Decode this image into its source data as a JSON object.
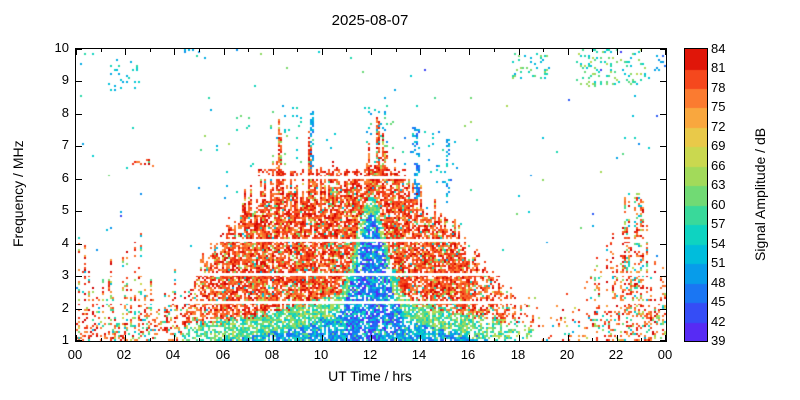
{
  "chart_data": {
    "type": "heatmap",
    "title": "2025-08-07",
    "xlabel": "UT Time / hrs",
    "ylabel": "Frequency / MHz",
    "xlim": [
      0,
      24
    ],
    "ylim": [
      1,
      10
    ],
    "grid": false,
    "x_ticks": [
      {
        "value": 0,
        "label": "00"
      },
      {
        "value": 2,
        "label": "02"
      },
      {
        "value": 4,
        "label": "04"
      },
      {
        "value": 6,
        "label": "06"
      },
      {
        "value": 8,
        "label": "08"
      },
      {
        "value": 10,
        "label": "10"
      },
      {
        "value": 12,
        "label": "12"
      },
      {
        "value": 14,
        "label": "14"
      },
      {
        "value": 16,
        "label": "16"
      },
      {
        "value": 18,
        "label": "18"
      },
      {
        "value": 20,
        "label": "20"
      },
      {
        "value": 22,
        "label": "22"
      },
      {
        "value": 24,
        "label": "00"
      }
    ],
    "y_ticks": [
      {
        "value": 1,
        "label": "1"
      },
      {
        "value": 2,
        "label": "2"
      },
      {
        "value": 3,
        "label": "3"
      },
      {
        "value": 4,
        "label": "4"
      },
      {
        "value": 5,
        "label": "5"
      },
      {
        "value": 6,
        "label": "6"
      },
      {
        "value": 7,
        "label": "7"
      },
      {
        "value": 8,
        "label": "8"
      },
      {
        "value": 9,
        "label": "9"
      },
      {
        "value": 10,
        "label": "10"
      }
    ],
    "colorbar": {
      "label": "Signal Amplitude / dB",
      "min": 39,
      "max": 84,
      "tick_values": [
        39,
        42,
        45,
        48,
        51,
        54,
        57,
        60,
        63,
        66,
        69,
        72,
        75,
        78,
        81,
        84
      ],
      "stops": [
        [
          39,
          "#6a1cf2"
        ],
        [
          42,
          "#433af5"
        ],
        [
          45,
          "#2660f6"
        ],
        [
          48,
          "#0d8bef"
        ],
        [
          51,
          "#00ace4"
        ],
        [
          54,
          "#00cdd4"
        ],
        [
          57,
          "#1cd8ae"
        ],
        [
          60,
          "#55da85"
        ],
        [
          63,
          "#8cda62"
        ],
        [
          66,
          "#b8da52"
        ],
        [
          69,
          "#dcd64c"
        ],
        [
          72,
          "#f5bc45"
        ],
        [
          75,
          "#fc9137"
        ],
        [
          78,
          "#fa6428"
        ],
        [
          81,
          "#f02c12"
        ],
        [
          84,
          "#cf0000"
        ]
      ]
    },
    "envelope_max_freq": {
      "units": [
        "UT hour",
        "MHz"
      ],
      "points": [
        [
          4.3,
          2.2
        ],
        [
          5,
          3.3
        ],
        [
          5.5,
          3.8
        ],
        [
          6,
          4.3
        ],
        [
          6.5,
          4.8
        ],
        [
          7,
          5.3
        ],
        [
          7.5,
          5.6
        ],
        [
          8,
          5.9
        ],
        [
          8.15,
          6.2
        ],
        [
          8.3,
          8.0
        ],
        [
          8.45,
          6.1
        ],
        [
          9,
          5.6
        ],
        [
          9.35,
          5.6
        ],
        [
          9.5,
          7.0
        ],
        [
          9.65,
          5.7
        ],
        [
          10,
          5.8
        ],
        [
          10.5,
          6.1
        ],
        [
          11,
          6.3
        ],
        [
          11.5,
          6.4
        ],
        [
          12.1,
          6.6
        ],
        [
          12.3,
          8.1
        ],
        [
          12.55,
          6.7
        ],
        [
          13,
          6.3
        ],
        [
          13.5,
          5.8
        ],
        [
          14,
          5.3
        ],
        [
          14.5,
          5.0
        ],
        [
          15,
          4.6
        ],
        [
          15.5,
          4.3
        ],
        [
          16,
          3.8
        ],
        [
          16.5,
          3.4
        ],
        [
          17,
          3.0
        ],
        [
          17.5,
          2.7
        ],
        [
          18,
          2.4
        ],
        [
          18.6,
          2.1
        ]
      ]
    },
    "quiet_bands_mhz": [
      2.2,
      3.05,
      4.12,
      6.05
    ],
    "day_span_hours": [
      4.3,
      18.6
    ],
    "broadcast_band": {
      "t0": 7.4,
      "t1": 13.6,
      "f0": 5.95,
      "f1": 6.3,
      "p_in": 0.55,
      "p_out": 0.3,
      "a0": 77,
      "a1": 84
    },
    "sporadic_regions": [
      {
        "t0": 1.3,
        "t1": 2.6,
        "f0": 8.7,
        "f1": 9.7,
        "p": 0.1,
        "a0": 50,
        "a1": 58
      },
      {
        "t0": 2.3,
        "t1": 3.2,
        "f0": 6.3,
        "f1": 6.6,
        "p": 0.2,
        "a0": 76,
        "a1": 84
      },
      {
        "t0": 0.1,
        "t1": 0.9,
        "f0": 9.5,
        "f1": 9.9,
        "p": 0.08,
        "a0": 50,
        "a1": 58
      },
      {
        "t0": 4.4,
        "t1": 5.3,
        "f0": 9.6,
        "f1": 10.0,
        "p": 0.06,
        "a0": 50,
        "a1": 60
      },
      {
        "t0": 6.4,
        "t1": 7.1,
        "f0": 7.4,
        "f1": 8.0,
        "p": 0.07,
        "a0": 52,
        "a1": 62
      },
      {
        "t0": 7.9,
        "t1": 9.3,
        "f0": 6.4,
        "f1": 8.2,
        "p": 0.06,
        "a0": 50,
        "a1": 64
      },
      {
        "t0": 11.8,
        "t1": 12.9,
        "f0": 6.9,
        "f1": 8.3,
        "p": 0.08,
        "a0": 48,
        "a1": 62
      },
      {
        "t0": 13.3,
        "t1": 15.5,
        "f0": 5.8,
        "f1": 7.6,
        "p": 0.04,
        "a0": 46,
        "a1": 58
      },
      {
        "t0": 9.55,
        "t1": 9.72,
        "f0": 6.3,
        "f1": 8.1,
        "p": 0.5,
        "a0": 45,
        "a1": 54
      },
      {
        "t0": 13.78,
        "t1": 13.96,
        "f0": 5.4,
        "f1": 7.6,
        "p": 0.45,
        "a0": 44,
        "a1": 54
      },
      {
        "t0": 15.05,
        "t1": 15.22,
        "f0": 5.2,
        "f1": 7.2,
        "p": 0.3,
        "a0": 46,
        "a1": 56
      },
      {
        "t0": 17.7,
        "t1": 19.3,
        "f0": 9.1,
        "f1": 9.9,
        "p": 0.13,
        "a0": 50,
        "a1": 64
      },
      {
        "t0": 20.3,
        "t1": 23.2,
        "f0": 8.8,
        "f1": 10.0,
        "p": 0.16,
        "a0": 52,
        "a1": 66
      },
      {
        "t0": 23.5,
        "t1": 24.0,
        "f0": 9.3,
        "f1": 9.9,
        "p": 0.25,
        "a0": 44,
        "a1": 52
      }
    ],
    "seed": 20250807
  }
}
